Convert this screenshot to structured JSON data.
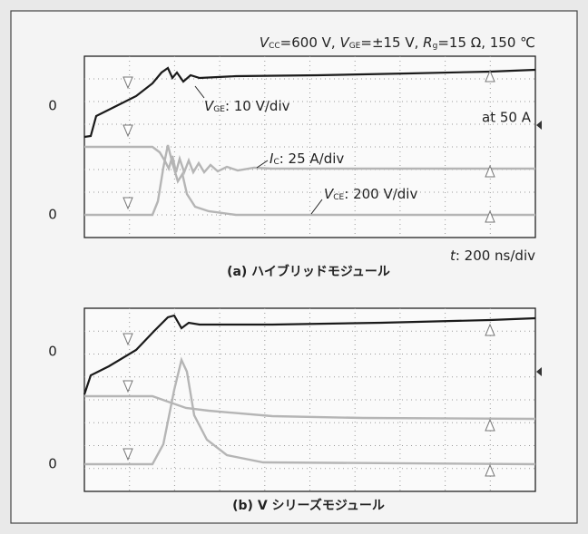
{
  "panel_a": {
    "conditions": [
      {
        "symbol": "V",
        "sub": "CC",
        "text": "=600 V, "
      },
      {
        "symbol": "V",
        "sub": "GE",
        "text": "=±15 V, "
      },
      {
        "symbol": "R",
        "sub": "g",
        "text": "=15 Ω, 150 ℃"
      }
    ],
    "zero_labels": [
      "0",
      "0"
    ],
    "vge_label": {
      "symbol": "V",
      "sub": "GE",
      "text": ": 10 V/div"
    },
    "ic_label": {
      "symbol": "I",
      "sub": "C",
      "text": ": 25 A/div"
    },
    "vce_label": {
      "symbol": "V",
      "sub": "CE",
      "text": ": 200 V/div"
    },
    "current_note": "at 50 A",
    "time_label": {
      "symbol": "t",
      "text": ": 200 ns/div"
    },
    "caption": "(a)  ハイブリッドモジュール"
  },
  "panel_b": {
    "zero_labels": [
      "0",
      "0"
    ],
    "caption": "(b)  V シリーズモジュール"
  }
}
